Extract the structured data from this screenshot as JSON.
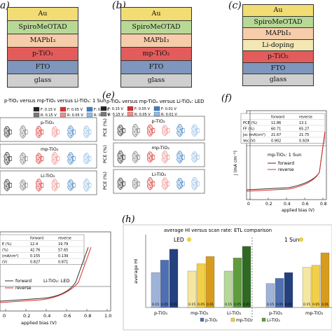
{
  "panels": {
    "a": {
      "label": "a)",
      "layers": [
        {
          "text": "Au",
          "color": "#f2dc74"
        },
        {
          "text": "SpiroMeOTAD",
          "color": "#b8d996"
        },
        {
          "text": "MAPbI₃",
          "color": "#f6ccaa"
        },
        {
          "text": "p-TiO₂",
          "color": "#e35c5c"
        },
        {
          "text": "FTO",
          "color": "#7f96bd"
        },
        {
          "text": "glass",
          "color": "#cfcfcf"
        }
      ]
    },
    "b": {
      "label": "(b)",
      "layers": [
        {
          "text": "Au",
          "color": "#f2dc74"
        },
        {
          "text": "SpiroMeOTAD",
          "color": "#b8d996"
        },
        {
          "text": "MAPbI₃",
          "color": "#f6ccaa"
        },
        {
          "text": "mp-TiO₂",
          "color": "#e35c5c"
        },
        {
          "text": "FTO",
          "color": "#7f96bd"
        },
        {
          "text": "glass",
          "color": "#cfcfcf"
        }
      ]
    },
    "c": {
      "label": "(c)",
      "layers": [
        {
          "text": "Au",
          "color": "#f2dc74"
        },
        {
          "text": "SpiroMeOTAD",
          "color": "#b8d996"
        },
        {
          "text": "MAPbI₃",
          "color": "#f6ccaa"
        },
        {
          "text": "Li-doping",
          "color": "#f3e7b3"
        },
        {
          "text": "p-TiO₂",
          "color": "#e35c5c"
        },
        {
          "text": "FTO",
          "color": "#7f96bd"
        },
        {
          "text": "glass",
          "color": "#cfcfcf"
        }
      ]
    },
    "d": {
      "title": "p-TiO₂ versus mp-TiO₂ versus Li-TiO₂: 1 Sun",
      "legend": [
        "F: 0.15 V",
        "R: 0.15 V",
        "F: 0.05 V",
        "R: 0.05 V",
        "F: 0.01 V",
        "R: 0.01 V"
      ],
      "rows": [
        "p-TiO₂",
        "mp-TiO₂",
        "Li-TiO₂"
      ]
    },
    "e": {
      "label": "(e)",
      "title": "p-TiO₂ versus mp-TiO₂ versus Li-TiO₂: LED",
      "legend": [
        "F: 0.15 V",
        "R: 0.15 V",
        "F: 0.05 V",
        "R: 0.05 V",
        "F: 0.01 V",
        "R: 0.01 V"
      ],
      "rows": [
        "p-TiO₂",
        "mp-TiO₂",
        "Li-TiO₂"
      ],
      "ylabel": "PCE (%)"
    },
    "f": {
      "label": "(f)",
      "table_header": [
        "",
        "forward",
        "reverse"
      ],
      "table_rows": [
        [
          "PCE (%)",
          "11.86",
          "13.1"
        ],
        [
          "FF (%)",
          "60.71",
          "65.27"
        ],
        [
          "Jsc (mA/cm²)",
          "21.67",
          "21.75"
        ],
        [
          "Voc (V)",
          "0.902",
          "0.929"
        ]
      ],
      "annotation": "mp-TiO₂: 1 Sun",
      "legend": [
        "forward",
        "reverse"
      ],
      "ylabel": "J (mA cm⁻²)",
      "xlabel": "applied bias (V)",
      "xticks": [
        "0",
        "0.2",
        "0.4",
        "0.6",
        "0.8"
      ]
    },
    "g": {
      "table_header": [
        "",
        "forward",
        "reverse"
      ],
      "table_rows": [
        [
          "E (%)",
          "12.4",
          "19.79"
        ],
        [
          "(%)",
          "42.76",
          "57.65"
        ],
        [
          "(mA/cm²)",
          "0.155",
          "0.139"
        ],
        [
          "(V)",
          "0.827",
          "0.871"
        ]
      ],
      "annotation": "Li-TiO₂: LED",
      "legend": [
        "forward",
        "reverse"
      ],
      "xlabel": "applied bias (V)",
      "xticks": [
        "0",
        "0.2",
        "0.4",
        "0.6",
        "0.8",
        "1.0"
      ]
    },
    "h": {
      "label": "(h)",
      "title": "average HI versus scan rate: ETL comparison",
      "ylabel": "average HI",
      "led_label": "LED",
      "sun_label": "1 Sun",
      "group_labels": [
        "p-TiO₂",
        "mp-TiO₂",
        "Li-TiO₂",
        "p-TiO₂",
        "mp-TiO₂"
      ],
      "bar_labels": [
        "0.15",
        "0.05",
        "0.01"
      ],
      "legend": [
        "p-TiO₂",
        "mp-TiO₂",
        "Li-TiO₂"
      ]
    }
  },
  "chart_data": {
    "type": "bar",
    "title": "average HI versus scan rate: ETL comparison",
    "ylabel": "average HI",
    "categories": [
      "LED p-TiO₂",
      "LED mp-TiO₂",
      "LED Li-TiO₂",
      "1 Sun p-TiO₂",
      "1 Sun mp-TiO₂"
    ],
    "scan_rates": [
      "0.15",
      "0.05",
      "0.01"
    ],
    "groups": [
      {
        "name": "LED p-TiO₂",
        "values": [
          0.48,
          0.65,
          0.8
        ],
        "colors": [
          "#9fb3d9",
          "#4f6fb3",
          "#23407f"
        ]
      },
      {
        "name": "LED mp-TiO₂",
        "values": [
          0.5,
          0.6,
          0.7
        ],
        "colors": [
          "#f6e7a0",
          "#f1cf48",
          "#d89c1c"
        ]
      },
      {
        "name": "LED Li-TiO₂",
        "values": [
          0.5,
          0.68,
          0.84
        ],
        "colors": [
          "#b7d79b",
          "#5f9c3e",
          "#2f6a22"
        ]
      },
      {
        "name": "1 Sun p-TiO₂",
        "values": [
          0.33,
          0.4,
          0.48
        ],
        "colors": [
          "#9fb3d9",
          "#4f6fb3",
          "#23407f"
        ]
      },
      {
        "name": "1 Sun mp-TiO₂",
        "values": [
          0.55,
          0.58,
          0.75
        ],
        "colors": [
          "#f6e7a0",
          "#f1cf48",
          "#d89c1c"
        ]
      }
    ]
  }
}
